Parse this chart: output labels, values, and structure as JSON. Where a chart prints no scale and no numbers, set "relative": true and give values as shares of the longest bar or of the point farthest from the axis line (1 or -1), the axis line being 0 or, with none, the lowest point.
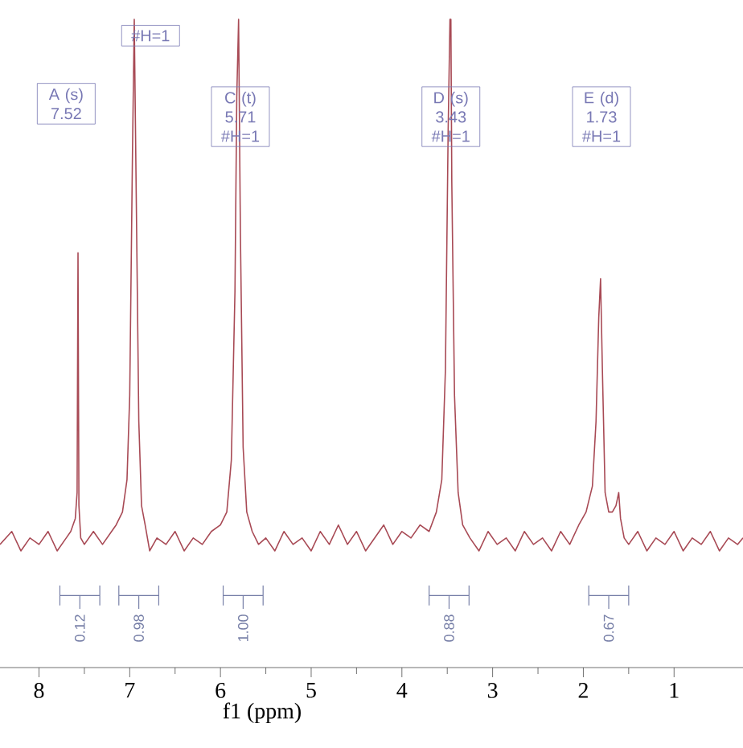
{
  "chart_data": {
    "type": "line",
    "relative": true,
    "xlabel": "f1 (ppm)",
    "xlim": [
      8.43,
      0.24
    ],
    "xticks": [
      8,
      7,
      6,
      5,
      4,
      3,
      2,
      1
    ],
    "tick_labels": "x",
    "color": "#a84a55",
    "x": [
      8.43,
      8.3,
      8.2,
      8.1,
      8.0,
      7.9,
      7.8,
      7.7,
      7.65,
      7.6,
      7.58,
      7.57,
      7.56,
      7.54,
      7.5,
      7.4,
      7.3,
      7.2,
      7.15,
      7.08,
      7.03,
      7.0,
      6.97,
      6.95,
      6.93,
      6.9,
      6.87,
      6.83,
      6.78,
      6.7,
      6.6,
      6.5,
      6.4,
      6.3,
      6.2,
      6.1,
      6.0,
      5.93,
      5.88,
      5.84,
      5.82,
      5.8,
      5.78,
      5.75,
      5.71,
      5.65,
      5.58,
      5.5,
      5.4,
      5.3,
      5.2,
      5.1,
      5.0,
      4.9,
      4.8,
      4.7,
      4.6,
      4.5,
      4.4,
      4.3,
      4.2,
      4.1,
      4.0,
      3.9,
      3.8,
      3.7,
      3.62,
      3.56,
      3.52,
      3.49,
      3.47,
      3.46,
      3.45,
      3.42,
      3.38,
      3.33,
      3.25,
      3.15,
      3.05,
      2.95,
      2.85,
      2.75,
      2.65,
      2.55,
      2.45,
      2.35,
      2.25,
      2.15,
      2.05,
      1.97,
      1.9,
      1.86,
      1.83,
      1.81,
      1.79,
      1.76,
      1.72,
      1.68,
      1.64,
      1.61,
      1.59,
      1.55,
      1.5,
      1.4,
      1.3,
      1.2,
      1.1,
      1.0,
      0.9,
      0.8,
      0.7,
      0.6,
      0.5,
      0.4,
      0.3,
      0.24
    ],
    "values": [
      0.19,
      0.21,
      0.18,
      0.2,
      0.19,
      0.21,
      0.18,
      0.2,
      0.21,
      0.23,
      0.27,
      0.64,
      0.25,
      0.2,
      0.19,
      0.21,
      0.19,
      0.21,
      0.22,
      0.24,
      0.29,
      0.42,
      0.79,
      1,
      0.75,
      0.38,
      0.25,
      0.22,
      0.18,
      0.2,
      0.19,
      0.21,
      0.18,
      0.2,
      0.19,
      0.21,
      0.22,
      0.24,
      0.32,
      0.58,
      0.88,
      1,
      0.67,
      0.34,
      0.24,
      0.21,
      0.19,
      0.2,
      0.18,
      0.21,
      0.19,
      0.2,
      0.18,
      0.21,
      0.19,
      0.22,
      0.19,
      0.21,
      0.18,
      0.2,
      0.22,
      0.19,
      0.21,
      0.2,
      0.22,
      0.21,
      0.24,
      0.29,
      0.46,
      0.83,
      1,
      1,
      0.75,
      0.42,
      0.27,
      0.22,
      0.2,
      0.18,
      0.21,
      0.19,
      0.2,
      0.18,
      0.21,
      0.19,
      0.2,
      0.18,
      0.21,
      0.19,
      0.22,
      0.24,
      0.28,
      0.38,
      0.54,
      0.6,
      0.46,
      0.27,
      0.24,
      0.24,
      0.25,
      0.27,
      0.23,
      0.2,
      0.19,
      0.21,
      0.18,
      0.2,
      0.19,
      0.21,
      0.18,
      0.2,
      0.19,
      0.21,
      0.18,
      0.2,
      0.19,
      0.2
    ],
    "annotations": [
      {
        "text": "A (s) 7.52",
        "x": 7.7,
        "y": 0.87
      },
      {
        "text": "#H=1",
        "x": 6.77,
        "y": 0.975
      },
      {
        "text": "C (t) 5.71 #H=1",
        "x": 5.78,
        "y": 0.85
      },
      {
        "text": "D (s) 3.43 #H=1",
        "x": 3.46,
        "y": 0.85
      },
      {
        "text": "E (d) 1.73 #H=1",
        "x": 1.8,
        "y": 0.85
      },
      {
        "text": "0.12",
        "x": 7.55
      },
      {
        "text": "0.98",
        "x": 6.9
      },
      {
        "text": "1.00",
        "x": 5.75
      },
      {
        "text": "0.88",
        "x": 3.48
      },
      {
        "text": "0.67",
        "x": 1.72
      }
    ]
  }
}
